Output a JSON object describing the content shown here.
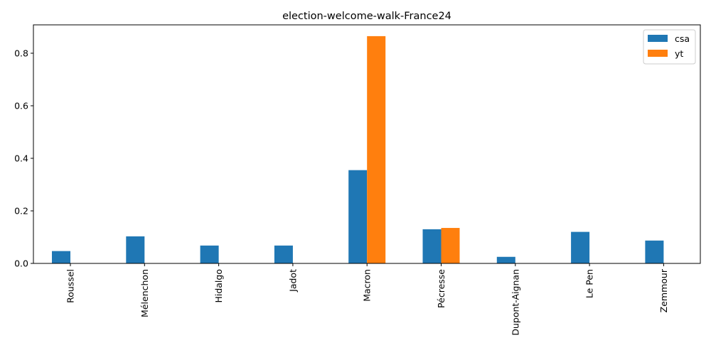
{
  "chart_data": {
    "type": "bar",
    "title": "election-welcome-walk-France24",
    "xlabel": "",
    "ylabel": "",
    "categories": [
      "Roussel",
      "Mélenchon",
      "Hidalgo",
      "Jadot",
      "Macron",
      "Pécresse",
      "Dupont-Aignan",
      "Le Pen",
      "Zemmour"
    ],
    "series": [
      {
        "name": "csa",
        "color": "#1f77b4",
        "values": [
          0.047,
          0.103,
          0.068,
          0.068,
          0.355,
          0.13,
          0.025,
          0.12,
          0.087
        ]
      },
      {
        "name": "yt",
        "color": "#ff7f0e",
        "values": [
          0,
          0,
          0,
          0,
          0.865,
          0.135,
          0,
          0,
          0
        ]
      }
    ],
    "ylim": [
      0,
      0.908
    ],
    "yticks": [
      0.0,
      0.2,
      0.4,
      0.6,
      0.8
    ],
    "ytick_labels": [
      "0.0",
      "0.2",
      "0.4",
      "0.6",
      "0.8"
    ],
    "legend_position": "top-right",
    "grid": false
  }
}
